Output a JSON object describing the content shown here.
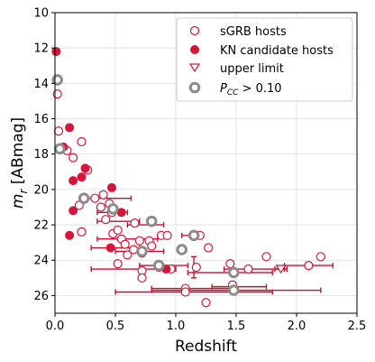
{
  "chart_data": {
    "type": "scatter",
    "xlabel": "Redshift",
    "ylabel_main": "m",
    "ylabel_sub": "r",
    "ylabel_unit": " [ABmag]",
    "xlim": [
      0,
      2.5
    ],
    "ylim": [
      27,
      10
    ],
    "y_inverted": true,
    "grid": true,
    "legend_position": "top-right",
    "x_ticks": [
      "0.0",
      "0.5",
      "1.0",
      "1.5",
      "2.0",
      "2.5"
    ],
    "y_ticks": [
      "10",
      "12",
      "14",
      "16",
      "18",
      "20",
      "22",
      "24",
      "26"
    ],
    "colors": {
      "crimson": "#d7153a",
      "gray": "#8c8c8c",
      "errorbar": "#c8102e"
    },
    "legend": [
      {
        "label": "sGRB hosts",
        "marker": "open-circle"
      },
      {
        "label": "KN candidate hosts",
        "marker": "filled-circle"
      },
      {
        "label": "upper limit",
        "marker": "open-triangle-down"
      },
      {
        "label_main": "P",
        "label_sub": "CC",
        "label_rest": " > 0.10",
        "marker": "gray-ring"
      }
    ],
    "series": [
      {
        "name": "sGRB hosts",
        "marker": "open-circle",
        "points": [
          {
            "x": 0.02,
            "y": 14.6
          },
          {
            "x": 0.03,
            "y": 16.7
          },
          {
            "x": 0.1,
            "y": 17.8
          },
          {
            "x": 0.15,
            "y": 18.2
          },
          {
            "x": 0.22,
            "y": 17.3
          },
          {
            "x": 0.27,
            "y": 18.9
          },
          {
            "x": 0.2,
            "y": 20.9
          },
          {
            "x": 0.22,
            "y": 22.4
          },
          {
            "x": 0.33,
            "y": 20.5
          },
          {
            "x": 0.38,
            "y": 21.0
          },
          {
            "x": 0.4,
            "y": 20.3
          },
          {
            "x": 0.45,
            "y": 20.8
          },
          {
            "x": 0.42,
            "y": 21.7
          },
          {
            "x": 0.47,
            "y": 21.3
          },
          {
            "x": 0.48,
            "y": 22.5
          },
          {
            "x": 0.52,
            "y": 22.3
          },
          {
            "x": 0.55,
            "y": 22.8
          },
          {
            "x": 0.52,
            "y": 24.2
          },
          {
            "x": 0.58,
            "y": 23.1
          },
          {
            "x": 0.6,
            "y": 23.7
          },
          {
            "x": 0.65,
            "y": 23.4
          },
          {
            "x": 0.66,
            "y": 21.9
          },
          {
            "x": 0.7,
            "y": 22.9
          },
          {
            "x": 0.72,
            "y": 23.6
          },
          {
            "x": 0.72,
            "y": 24.6
          },
          {
            "x": 0.72,
            "y": 25.0
          },
          {
            "x": 0.78,
            "y": 22.9
          },
          {
            "x": 0.8,
            "y": 23.2
          },
          {
            "x": 0.88,
            "y": 22.6
          },
          {
            "x": 0.93,
            "y": 22.6
          },
          {
            "x": 0.86,
            "y": 24.4
          },
          {
            "x": 0.96,
            "y": 24.5
          },
          {
            "x": 1.08,
            "y": 25.6
          },
          {
            "x": 1.08,
            "y": 25.8
          },
          {
            "x": 1.17,
            "y": 24.4
          },
          {
            "x": 1.2,
            "y": 22.6
          },
          {
            "x": 1.27,
            "y": 23.3
          },
          {
            "x": 1.25,
            "y": 26.4
          },
          {
            "x": 1.45,
            "y": 24.2
          },
          {
            "x": 1.47,
            "y": 25.4
          },
          {
            "x": 1.6,
            "y": 24.5
          },
          {
            "x": 1.75,
            "y": 23.8
          },
          {
            "x": 2.1,
            "y": 24.3
          },
          {
            "x": 2.2,
            "y": 23.8
          }
        ]
      },
      {
        "name": "KN candidate hosts",
        "marker": "filled-circle",
        "points": [
          {
            "x": 0.01,
            "y": 12.2
          },
          {
            "x": 0.07,
            "y": 17.6
          },
          {
            "x": 0.12,
            "y": 16.5
          },
          {
            "x": 0.15,
            "y": 19.5
          },
          {
            "x": 0.15,
            "y": 21.2
          },
          {
            "x": 0.12,
            "y": 22.6
          },
          {
            "x": 0.22,
            "y": 19.3
          },
          {
            "x": 0.25,
            "y": 18.8
          },
          {
            "x": 0.47,
            "y": 19.9
          },
          {
            "x": 0.55,
            "y": 21.3
          },
          {
            "x": 0.46,
            "y": 23.3
          },
          {
            "x": 0.92,
            "y": 24.5
          }
        ]
      },
      {
        "name": "upper limit",
        "marker": "open-triangle-down",
        "points": [
          {
            "x": 1.87,
            "y": 24.5
          }
        ]
      },
      {
        "name": "P_CC > 0.10",
        "marker": "gray-ring",
        "points": [
          {
            "x": 0.02,
            "y": 13.8
          },
          {
            "x": 0.04,
            "y": 17.7
          },
          {
            "x": 0.24,
            "y": 20.5
          },
          {
            "x": 0.48,
            "y": 21.1
          },
          {
            "x": 0.8,
            "y": 21.8
          },
          {
            "x": 1.15,
            "y": 22.6
          },
          {
            "x": 1.05,
            "y": 23.4
          },
          {
            "x": 0.72,
            "y": 23.5
          },
          {
            "x": 0.86,
            "y": 24.3
          },
          {
            "x": 1.48,
            "y": 24.7
          },
          {
            "x": 1.48,
            "y": 25.7
          }
        ]
      }
    ],
    "error_bars": [
      {
        "x": 0.47,
        "y": 20.5,
        "xmin": 0.25,
        "xmax": 0.63
      },
      {
        "x": 0.48,
        "y": 21.3,
        "xmin": 0.35,
        "xmax": 0.6
      },
      {
        "x": 0.52,
        "y": 21.8,
        "xmin": 0.35,
        "xmax": 0.7
      },
      {
        "x": 0.5,
        "y": 23.3,
        "xmin": 0.3,
        "xmax": 0.7
      },
      {
        "x": 0.65,
        "y": 22.8,
        "xmin": 0.35,
        "xmax": 0.85
      },
      {
        "x": 0.78,
        "y": 22.0,
        "xmin": 0.6,
        "xmax": 0.9
      },
      {
        "x": 0.72,
        "y": 23.5,
        "xmin": 0.5,
        "xmax": 0.9
      },
      {
        "x": 0.72,
        "y": 24.5,
        "xmin": 0.3,
        "xmax": 1.0
      },
      {
        "x": 0.86,
        "y": 24.3,
        "xmin": 0.7,
        "xmax": 1.1
      },
      {
        "x": 1.15,
        "y": 22.6,
        "xmin": 1.05,
        "xmax": 1.22
      },
      {
        "x": 1.15,
        "y": 24.4,
        "xmin": 1.15,
        "xmax": 1.15,
        "ymin": 23.8,
        "ymax": 25.0
      },
      {
        "x": 1.08,
        "y": 25.6,
        "xmin": 0.8,
        "xmax": 1.5
      },
      {
        "x": 1.08,
        "y": 25.8,
        "xmin": 0.5,
        "xmax": 1.8
      },
      {
        "x": 1.48,
        "y": 25.7,
        "xmin": 0.8,
        "xmax": 2.2
      },
      {
        "x": 1.6,
        "y": 24.5,
        "xmin": 1.4,
        "xmax": 1.9
      },
      {
        "x": 1.55,
        "y": 24.7,
        "xmin": 1.1,
        "xmax": 1.8
      },
      {
        "x": 2.1,
        "y": 24.3,
        "xmin": 1.9,
        "xmax": 2.3
      },
      {
        "x": 1.87,
        "y": 24.5,
        "xmin": 1.82,
        "xmax": 1.92
      },
      {
        "x": 1.48,
        "y": 25.5,
        "xmin": 1.3,
        "xmax": 1.75
      }
    ]
  }
}
